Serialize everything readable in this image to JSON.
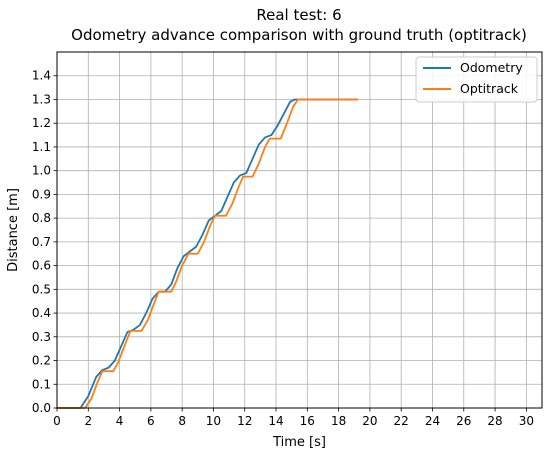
{
  "chart_data": {
    "type": "line",
    "title": "Real test: 6",
    "subtitle": "Odometry advance comparison with ground truth (optitrack)",
    "xlabel": "Time [s]",
    "ylabel": "Distance [m]",
    "xlim": [
      0,
      31
    ],
    "ylim": [
      0,
      1.5
    ],
    "xticks": [
      0,
      2,
      4,
      6,
      8,
      10,
      12,
      14,
      16,
      18,
      20,
      22,
      24,
      26,
      28,
      30
    ],
    "xtick_labels": [
      "0",
      "2",
      "4",
      "6",
      "8",
      "10",
      "12",
      "14",
      "16",
      "18",
      "20",
      "22",
      "24",
      "26",
      "28",
      "30"
    ],
    "yticks": [
      0,
      0.1,
      0.2,
      0.3,
      0.4,
      0.5,
      0.6,
      0.7,
      0.8,
      0.9,
      1.0,
      1.1,
      1.2,
      1.3,
      1.4
    ],
    "ytick_labels": [
      "0.0",
      "0.1",
      "0.2",
      "0.3",
      "0.4",
      "0.5",
      "0.6",
      "0.7",
      "0.8",
      "0.9",
      "1.0",
      "1.1",
      "1.2",
      "1.3",
      "1.4"
    ],
    "grid": true,
    "legend_position": "top-right",
    "series": [
      {
        "name": "Odometry",
        "color": "#1f77b4",
        "points": [
          [
            0,
            0
          ],
          [
            1.5,
            0
          ],
          [
            2.0,
            0.05
          ],
          [
            2.5,
            0.13
          ],
          [
            2.9,
            0.16
          ],
          [
            3.3,
            0.17
          ],
          [
            3.7,
            0.2
          ],
          [
            4.1,
            0.26
          ],
          [
            4.5,
            0.32
          ],
          [
            4.9,
            0.33
          ],
          [
            5.3,
            0.35
          ],
          [
            5.7,
            0.4
          ],
          [
            6.1,
            0.46
          ],
          [
            6.5,
            0.49
          ],
          [
            6.9,
            0.49
          ],
          [
            7.3,
            0.52
          ],
          [
            7.7,
            0.59
          ],
          [
            8.1,
            0.64
          ],
          [
            8.5,
            0.66
          ],
          [
            8.9,
            0.68
          ],
          [
            9.3,
            0.73
          ],
          [
            9.7,
            0.79
          ],
          [
            10.1,
            0.81
          ],
          [
            10.5,
            0.83
          ],
          [
            10.9,
            0.89
          ],
          [
            11.3,
            0.95
          ],
          [
            11.7,
            0.98
          ],
          [
            12.1,
            0.99
          ],
          [
            12.5,
            1.05
          ],
          [
            12.9,
            1.11
          ],
          [
            13.3,
            1.14
          ],
          [
            13.7,
            1.15
          ],
          [
            14.1,
            1.19
          ],
          [
            14.5,
            1.24
          ],
          [
            14.9,
            1.29
          ],
          [
            15.2,
            1.3
          ],
          [
            19.2,
            1.3
          ]
        ]
      },
      {
        "name": "Optitrack",
        "color": "#ff7f0e",
        "points": [
          [
            0,
            0
          ],
          [
            1.8,
            0
          ],
          [
            2.2,
            0.04
          ],
          [
            2.6,
            0.11
          ],
          [
            2.9,
            0.155
          ],
          [
            3.6,
            0.155
          ],
          [
            3.9,
            0.19
          ],
          [
            4.3,
            0.26
          ],
          [
            4.7,
            0.325
          ],
          [
            5.4,
            0.325
          ],
          [
            5.8,
            0.37
          ],
          [
            6.2,
            0.44
          ],
          [
            6.5,
            0.49
          ],
          [
            7.3,
            0.49
          ],
          [
            7.6,
            0.53
          ],
          [
            8.0,
            0.6
          ],
          [
            8.4,
            0.65
          ],
          [
            9.0,
            0.65
          ],
          [
            9.4,
            0.7
          ],
          [
            9.8,
            0.77
          ],
          [
            10.1,
            0.81
          ],
          [
            10.8,
            0.81
          ],
          [
            11.2,
            0.86
          ],
          [
            11.6,
            0.93
          ],
          [
            11.9,
            0.975
          ],
          [
            12.5,
            0.975
          ],
          [
            12.9,
            1.03
          ],
          [
            13.3,
            1.1
          ],
          [
            13.6,
            1.135
          ],
          [
            14.3,
            1.135
          ],
          [
            14.7,
            1.2
          ],
          [
            15.1,
            1.27
          ],
          [
            15.4,
            1.3
          ],
          [
            19.2,
            1.3
          ]
        ]
      }
    ]
  }
}
